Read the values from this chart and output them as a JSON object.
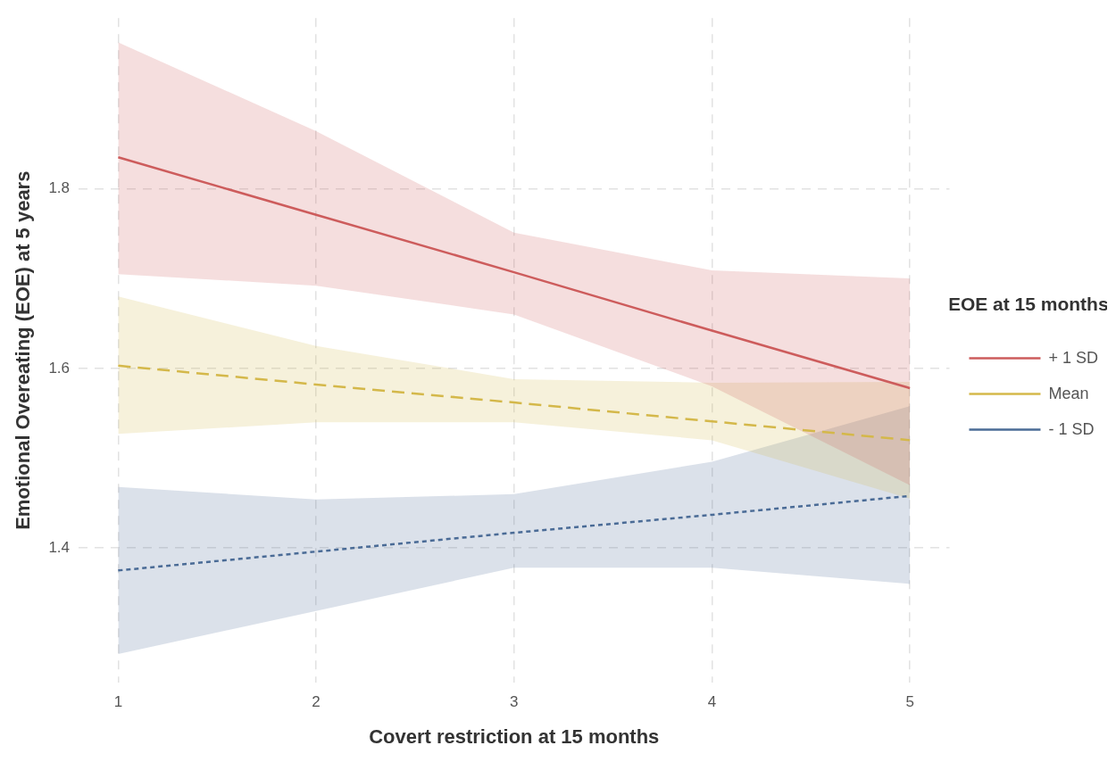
{
  "chart_data": {
    "type": "line",
    "xlabel": "Covert restriction at 15 months",
    "ylabel": "Emotional Overeating (EOE) at 5 years",
    "legend_title": "EOE at 15 months",
    "legend": "right",
    "grid": true,
    "marker": "none",
    "x": [
      1,
      2,
      3,
      4,
      5
    ],
    "xlim": [
      0.8,
      5.2
    ],
    "xticks": [
      1,
      2,
      3,
      4,
      5
    ],
    "ylim": [
      1.25,
      1.99
    ],
    "yticks": [
      1.4,
      1.6,
      1.8
    ],
    "series": [
      {
        "name": "+ 1 SD",
        "color": "#cd5c5c",
        "line_style": "solid",
        "values": [
          1.835,
          1.771,
          1.707,
          1.642,
          1.578
        ],
        "lower": [
          1.705,
          1.692,
          1.66,
          1.58,
          1.47
        ],
        "upper": [
          1.963,
          1.864,
          1.751,
          1.709,
          1.7
        ]
      },
      {
        "name": "Mean",
        "color": "#d4b84a",
        "line_style": "dashed",
        "values": [
          1.603,
          1.582,
          1.562,
          1.541,
          1.52
        ],
        "lower": [
          1.527,
          1.54,
          1.54,
          1.52,
          1.455
        ],
        "upper": [
          1.68,
          1.625,
          1.588,
          1.584,
          1.585
        ]
      },
      {
        "name": "- 1 SD",
        "color": "#4a6b96",
        "line_style": "dotted",
        "values": [
          1.375,
          1.396,
          1.417,
          1.437,
          1.458
        ],
        "lower": [
          1.282,
          1.33,
          1.378,
          1.378,
          1.36
        ],
        "upper": [
          1.468,
          1.454,
          1.46,
          1.496,
          1.558
        ]
      }
    ]
  }
}
